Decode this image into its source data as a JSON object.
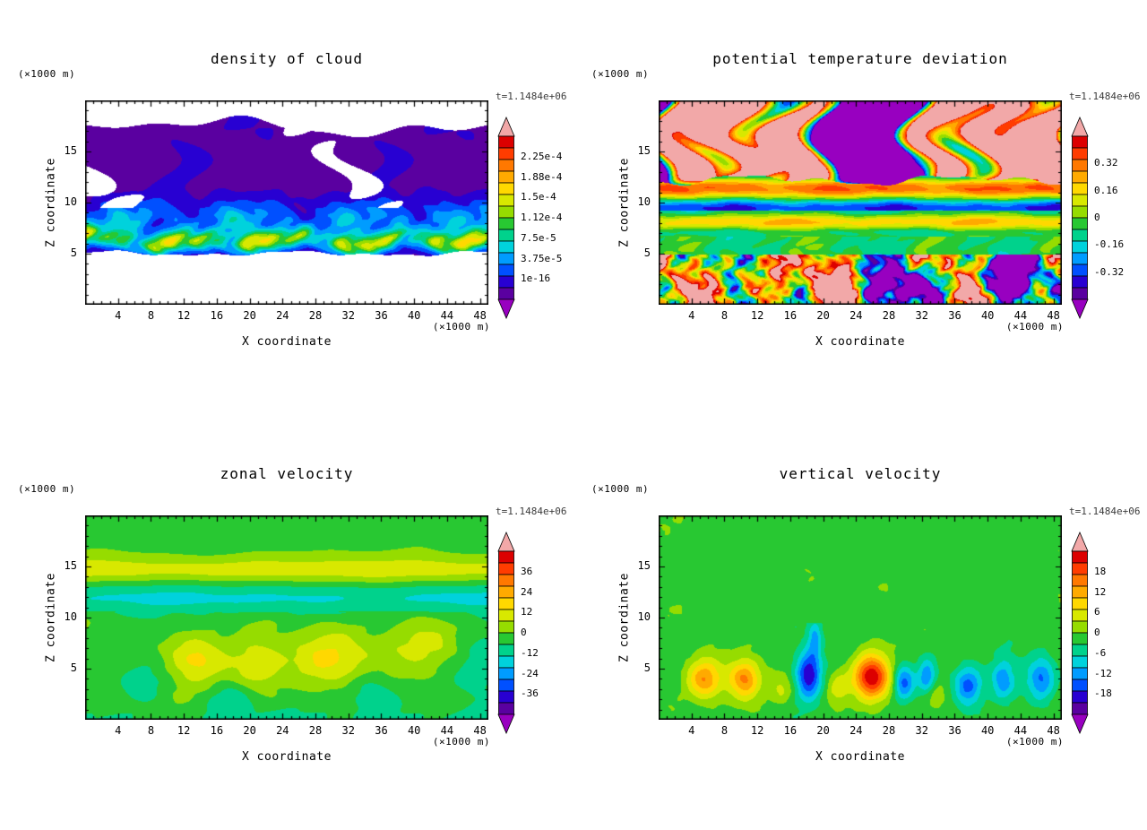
{
  "page": {
    "background": "#ffffff"
  },
  "colorbar_palette": {
    "over": "#F2A8A8",
    "under": "#9800C0",
    "cells_top_to_bottom": [
      "#DC0000",
      "#FF3C00",
      "#FF7800",
      "#FFAA00",
      "#FFD800",
      "#D8E800",
      "#96DC00",
      "#28C832",
      "#00D28C",
      "#00D2DC",
      "#009CFF",
      "#0050FF",
      "#2800D2",
      "#5A00A0"
    ]
  },
  "panels": [
    {
      "id": "density-of-cloud",
      "title": "density of cloud",
      "timestamp": "t=1.1484e+06",
      "ylabel": "Z coordinate",
      "xlabel": "X coordinate",
      "y_unit": "(×1000 m)",
      "x_unit": "(×1000 m)",
      "y_ticks": [
        "15",
        "10",
        "5"
      ],
      "x_ticks": [
        "4",
        "8",
        "12",
        "16",
        "20",
        "24",
        "28",
        "32",
        "36",
        "40",
        "44",
        "48"
      ],
      "colorbar_labels": [
        "2.25e-4",
        "1.88e-4",
        "1.5e-4",
        "1.12e-4",
        "7.5e-5",
        "3.75e-5",
        "1e-16"
      ]
    },
    {
      "id": "potential-temperature-deviation",
      "title": "potential temperature deviation",
      "timestamp": "t=1.1484e+06",
      "ylabel": "Z coordinate",
      "xlabel": "X coordinate",
      "y_unit": "(×1000 m)",
      "x_unit": "(×1000 m)",
      "y_ticks": [
        "15",
        "10",
        "5"
      ],
      "x_ticks": [
        "4",
        "8",
        "12",
        "16",
        "20",
        "24",
        "28",
        "32",
        "36",
        "40",
        "44",
        "48"
      ],
      "colorbar_labels": [
        "0.32",
        "0.16",
        "0",
        "-0.16",
        "-0.32"
      ]
    },
    {
      "id": "zonal-velocity",
      "title": "zonal velocity",
      "timestamp": "t=1.1484e+06",
      "ylabel": "Z coordinate",
      "xlabel": "X coordinate",
      "y_unit": "(×1000 m)",
      "x_unit": "(×1000 m)",
      "y_ticks": [
        "15",
        "10",
        "5"
      ],
      "x_ticks": [
        "4",
        "8",
        "12",
        "16",
        "20",
        "24",
        "28",
        "32",
        "36",
        "40",
        "44",
        "48"
      ],
      "colorbar_labels": [
        "36",
        "24",
        "12",
        "0",
        "-12",
        "-24",
        "-36"
      ]
    },
    {
      "id": "vertical-velocity",
      "title": "vertical velocity",
      "timestamp": "t=1.1484e+06",
      "ylabel": "Z coordinate",
      "xlabel": "X coordinate",
      "y_unit": "(×1000 m)",
      "x_unit": "(×1000 m)",
      "y_ticks": [
        "15",
        "10",
        "5"
      ],
      "x_ticks": [
        "4",
        "8",
        "12",
        "16",
        "20",
        "24",
        "28",
        "32",
        "36",
        "40",
        "44",
        "48"
      ],
      "colorbar_labels": [
        "18",
        "12",
        "6",
        "0",
        "-6",
        "-12",
        "-18"
      ]
    }
  ],
  "chart_data": [
    {
      "type": "heatmap",
      "title": "density of cloud",
      "xlabel": "X coordinate",
      "ylabel": "Z coordinate",
      "x_unit": "×1000 m",
      "y_unit": "×1000 m",
      "x_ticks": [
        4,
        8,
        12,
        16,
        20,
        24,
        28,
        32,
        36,
        40,
        44,
        48
      ],
      "y_ticks": [
        5,
        10,
        15
      ],
      "x_range": [
        0,
        49
      ],
      "y_range": [
        0,
        20
      ],
      "time_label": "t=1.1484e+06",
      "colorbar_tick_labels": [
        "2.25e-4",
        "1.88e-4",
        "1.5e-4",
        "1.12e-4",
        "7.5e-5",
        "3.75e-5",
        "1e-16"
      ],
      "colorbar_tick_values": [
        0.000225,
        0.000188,
        0.00015,
        0.000112,
        7.5e-05,
        3.75e-05,
        1e-16
      ],
      "palette": "rainbow filled contours (purple=low to red=high), pink arrow=above range, purple arrow=below range, white=no cloud",
      "legend_position": "right"
    },
    {
      "type": "heatmap",
      "title": "potential temperature deviation",
      "xlabel": "X coordinate",
      "ylabel": "Z coordinate",
      "x_unit": "×1000 m",
      "y_unit": "×1000 m",
      "x_ticks": [
        4,
        8,
        12,
        16,
        20,
        24,
        28,
        32,
        36,
        40,
        44,
        48
      ],
      "y_ticks": [
        5,
        10,
        15
      ],
      "x_range": [
        0,
        49
      ],
      "y_range": [
        0,
        20
      ],
      "time_label": "t=1.1484e+06",
      "colorbar_tick_labels": [
        "0.32",
        "0.16",
        "0",
        "-0.16",
        "-0.32"
      ],
      "colorbar_tick_values": [
        0.32,
        0.16,
        0,
        -0.16,
        -0.32
      ],
      "palette": "rainbow filled contours, pink arrow=above range, purple arrow=below range",
      "legend_position": "right"
    },
    {
      "type": "heatmap",
      "title": "zonal velocity",
      "xlabel": "X coordinate",
      "ylabel": "Z coordinate",
      "x_unit": "×1000 m",
      "y_unit": "×1000 m",
      "x_ticks": [
        4,
        8,
        12,
        16,
        20,
        24,
        28,
        32,
        36,
        40,
        44,
        48
      ],
      "y_ticks": [
        5,
        10,
        15
      ],
      "x_range": [
        0,
        49
      ],
      "y_range": [
        0,
        20
      ],
      "time_label": "t=1.1484e+06",
      "colorbar_tick_labels": [
        "36",
        "24",
        "12",
        "0",
        "-12",
        "-24",
        "-36"
      ],
      "colorbar_tick_values": [
        36,
        24,
        12,
        0,
        -12,
        -24,
        -36
      ],
      "palette": "rainbow filled contours, pink arrow=above range, purple arrow=below range",
      "legend_position": "right"
    },
    {
      "type": "heatmap",
      "title": "vertical velocity",
      "xlabel": "X coordinate",
      "ylabel": "Z coordinate",
      "x_unit": "×1000 m",
      "y_unit": "×1000 m",
      "x_ticks": [
        4,
        8,
        12,
        16,
        20,
        24,
        28,
        32,
        36,
        40,
        44,
        48
      ],
      "y_ticks": [
        5,
        10,
        15
      ],
      "x_range": [
        0,
        49
      ],
      "y_range": [
        0,
        20
      ],
      "time_label": "t=1.1484e+06",
      "colorbar_tick_labels": [
        "18",
        "12",
        "6",
        "0",
        "-6",
        "-12",
        "-18"
      ],
      "colorbar_tick_values": [
        18,
        12,
        6,
        0,
        -6,
        -12,
        -18
      ],
      "palette": "rainbow filled contours, pink arrow=above range, purple arrow=below range",
      "legend_position": "right"
    }
  ]
}
